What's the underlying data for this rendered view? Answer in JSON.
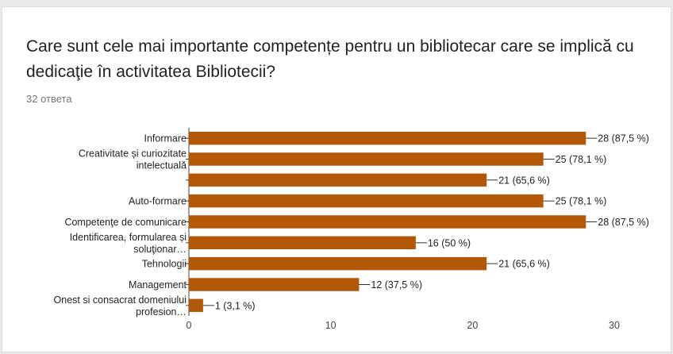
{
  "question": {
    "title": "Care sunt cele mai importante competențe pentru un bibliotecar care se implică cu dedicaţie în activitatea Bibliotecii?",
    "responses": "32 ответа"
  },
  "colors": {
    "bar": "#b35806",
    "axis": "#444444",
    "grid": "#cccccc"
  },
  "chart_data": {
    "type": "bar",
    "orientation": "horizontal",
    "categories": [
      [
        "Informare"
      ],
      [
        "Creativitate și curiozitate",
        "intelectuală"
      ],
      [
        ""
      ],
      [
        "Auto-formare"
      ],
      [
        "Competenţe de comunicare"
      ],
      [
        "Identificarea, formularea și",
        "soluţionar…"
      ],
      [
        "Tehnologii"
      ],
      [
        "Management"
      ],
      [
        "Onest si consacrat domeniului",
        "profesion…"
      ]
    ],
    "values": [
      28,
      25,
      21,
      25,
      28,
      16,
      21,
      12,
      1
    ],
    "value_labels": [
      "28 (87,5 %)",
      "25 (78,1 %)",
      "21 (65,6 %)",
      "25 (78,1 %)",
      "28 (87,5 %)",
      "16 (50 %)",
      "21 (65,6 %)",
      "12 (37,5 %)",
      "1 (3,1 %)"
    ],
    "xlim": [
      0,
      30
    ],
    "xticks": [
      "0",
      "10",
      "20",
      "30"
    ],
    "grid": false,
    "legend": "none"
  }
}
